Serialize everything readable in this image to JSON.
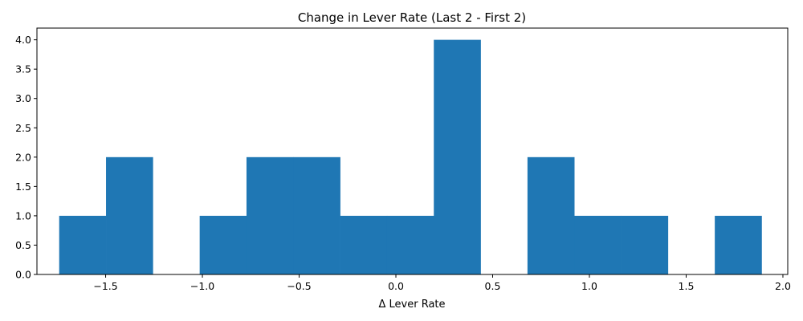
{
  "chart_data": {
    "type": "bar",
    "title": "Change in Lever Rate (Last 2 - First 2)",
    "xlabel": "Δ Lever Rate",
    "ylabel": "",
    "xlim": [
      -1.855,
      2.025
    ],
    "ylim": [
      0,
      4.2
    ],
    "xticks": [
      -1.5,
      -1.0,
      -0.5,
      0.0,
      0.5,
      1.0,
      1.5,
      2.0
    ],
    "xtick_labels": [
      "−1.5",
      "−1.0",
      "−0.5",
      "0.0",
      "0.5",
      "1.0",
      "1.5",
      "2.0"
    ],
    "yticks": [
      0,
      0.5,
      1,
      1.5,
      2,
      2.5,
      3,
      3.5,
      4
    ],
    "ytick_labels": [
      "0.0",
      "0.5",
      "1.0",
      "1.5",
      "2.0",
      "2.5",
      "3.0",
      "3.5",
      "4.0"
    ],
    "bin_edges": [
      -1.74,
      -1.498,
      -1.256,
      -1.014,
      -0.772,
      -0.53,
      -0.288,
      -0.046,
      0.196,
      0.438,
      0.68,
      0.922,
      1.164,
      1.406,
      1.648,
      1.89
    ],
    "counts": [
      1,
      2,
      0,
      1,
      2,
      2,
      1,
      1,
      4,
      0,
      2,
      1,
      1,
      0,
      1
    ],
    "grid": false,
    "color": "#1f77b4"
  }
}
